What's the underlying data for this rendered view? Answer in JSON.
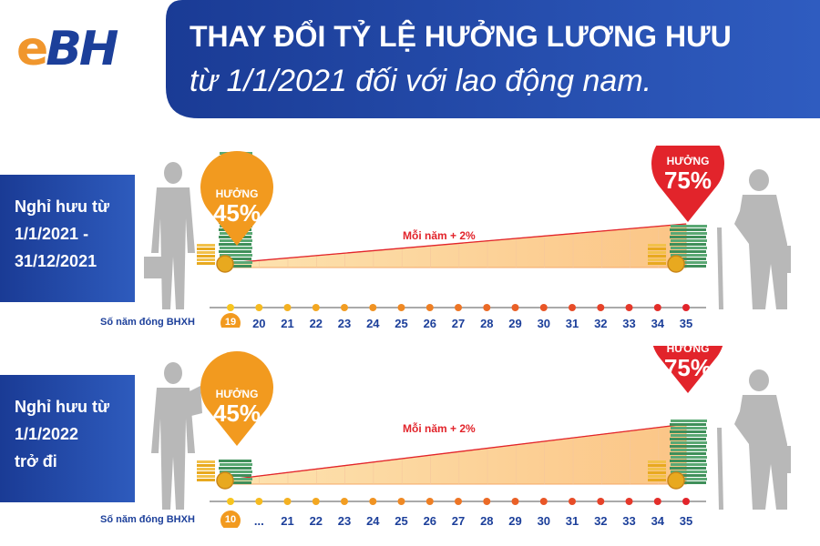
{
  "header": {
    "logo_e": "e",
    "logo_bh": "BH",
    "title": "THAY ĐỔI TỶ LỆ HƯỞNG LƯƠNG HƯU",
    "subtitle": "từ 1/1/2021 đối với lao động nam."
  },
  "colors": {
    "navy": "#1c3f9a",
    "orange": "#f29a1f",
    "red": "#e2242b",
    "money_green": "#3f8f5a",
    "coin_gold": "#e8a91f",
    "silhouette": "#b8b8b8"
  },
  "sections": [
    {
      "label_lines": [
        "Nghỉ hưu từ",
        "1/1/2021 -",
        "31/12/2021"
      ],
      "start_pin": {
        "word": "HƯỞNG",
        "percent": "45%"
      },
      "end_pin": {
        "word": "HƯỞNG",
        "percent": "75%"
      },
      "slope_label": "Mỗi năm + 2%",
      "axis_label": "Số năm đóng BHXH",
      "ticks": [
        "19",
        "20",
        "21",
        "22",
        "23",
        "24",
        "25",
        "26",
        "27",
        "28",
        "29",
        "30",
        "31",
        "32",
        "33",
        "34",
        "35"
      ],
      "start_rate": 45,
      "end_rate": 75
    },
    {
      "label_lines": [
        "Nghỉ hưu từ",
        "1/1/2022",
        "trở đi"
      ],
      "start_pin": {
        "word": "HƯỞNG",
        "percent": "45%"
      },
      "end_pin": {
        "word": "HƯỞNG",
        "percent": "75%"
      },
      "slope_label": "Mỗi năm + 2%",
      "axis_label": "Số năm đóng BHXH",
      "ticks": [
        "10",
        "...",
        "21",
        "22",
        "23",
        "24",
        "25",
        "26",
        "27",
        "28",
        "29",
        "30",
        "31",
        "32",
        "33",
        "34",
        "35"
      ],
      "start_rate": 45,
      "end_rate": 75
    }
  ]
}
